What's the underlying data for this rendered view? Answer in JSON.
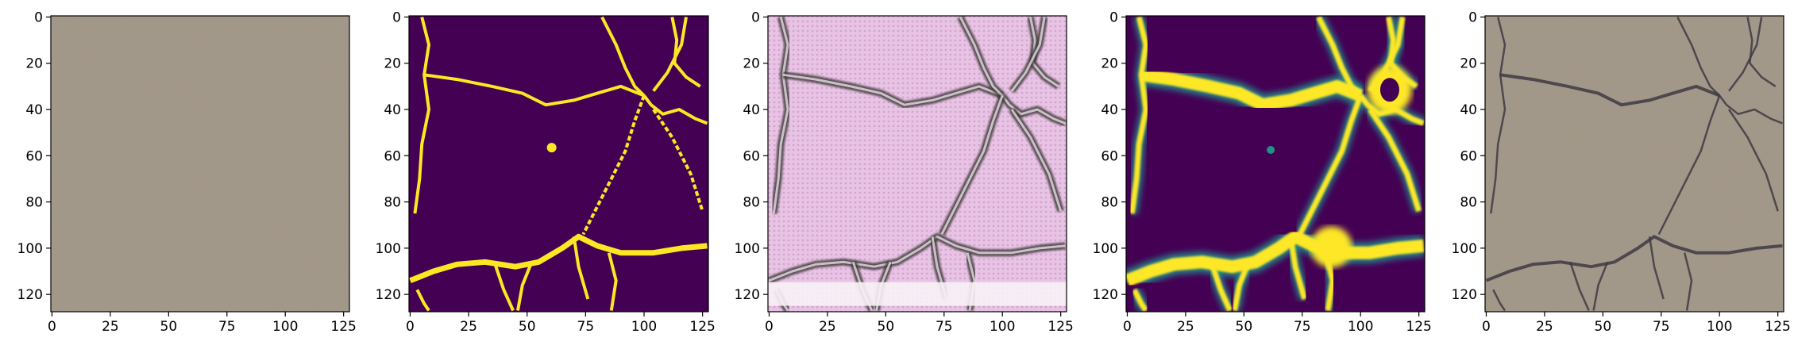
{
  "chart_data": [
    {
      "type": "image",
      "description_key": "concrete-input",
      "xlim": [
        0,
        127
      ],
      "ylim": [
        127,
        0
      ],
      "xticks": [
        0,
        25,
        50,
        75,
        100,
        125
      ],
      "yticks": [
        0,
        20,
        40,
        60,
        80,
        100,
        120
      ],
      "palette": {
        "base": "#a4998a",
        "speck": "#6f6558"
      }
    },
    {
      "type": "image",
      "description_key": "ground-truth-mask",
      "xlim": [
        0,
        127
      ],
      "ylim": [
        127,
        0
      ],
      "xticks": [
        0,
        25,
        50,
        75,
        100,
        125
      ],
      "yticks": [
        0,
        20,
        40,
        60,
        80,
        100,
        120
      ],
      "palette": {
        "background": "#440154",
        "crack": "#fde725"
      }
    },
    {
      "type": "image",
      "description_key": "generated-texture",
      "xlim": [
        0,
        127
      ],
      "ylim": [
        127,
        0
      ],
      "xticks": [
        0,
        25,
        50,
        75,
        100,
        125
      ],
      "yticks": [
        0,
        20,
        40,
        60,
        80,
        100,
        120
      ],
      "palette": {
        "base": "#e6bfe0",
        "edge": "#3a3434",
        "highlight": "#f7f2f6"
      }
    },
    {
      "type": "image",
      "description_key": "predicted-heatmap",
      "xlim": [
        0,
        127
      ],
      "ylim": [
        127,
        0
      ],
      "xticks": [
        0,
        25,
        50,
        75,
        100,
        125
      ],
      "yticks": [
        0,
        20,
        40,
        60,
        80,
        100,
        120
      ],
      "palette": {
        "background": "#440154",
        "mid": "#21918c",
        "high": "#fde725"
      }
    },
    {
      "type": "image",
      "description_key": "overlay-result",
      "xlim": [
        0,
        127
      ],
      "ylim": [
        127,
        0
      ],
      "xticks": [
        0,
        25,
        50,
        75,
        100,
        125
      ],
      "yticks": [
        0,
        20,
        40,
        60,
        80,
        100,
        120
      ],
      "palette": {
        "base": "#a4998a",
        "crack": "#3f3a44"
      }
    }
  ]
}
